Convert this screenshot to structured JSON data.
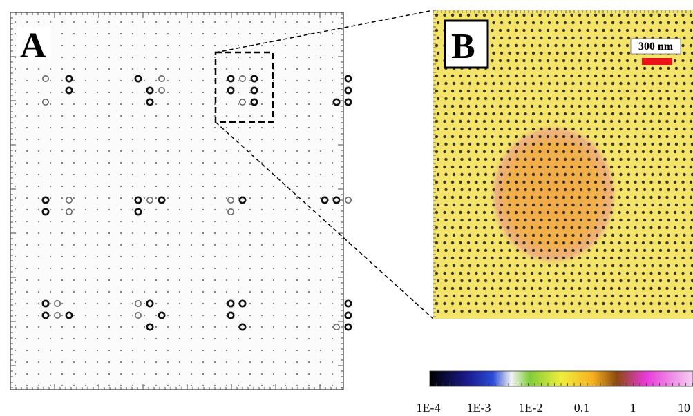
{
  "panels": [
    {
      "id": "A",
      "label": "A"
    },
    {
      "id": "B",
      "label": "B"
    }
  ],
  "scale_bar": {
    "label": "300 nm",
    "color": "#e8141a"
  },
  "colorbar": {
    "tick_labels": [
      "1E-4",
      "1E-3",
      "1E-2",
      "0.1",
      "1",
      "10"
    ],
    "colors": [
      "#000000",
      "#1a1a8a",
      "#2a4bd8",
      "#f2f2f2",
      "#7fcc3a",
      "#f0ee3c",
      "#f5b020",
      "#8a4a10",
      "#e838d8",
      "#f4d0f0"
    ]
  },
  "colors": {
    "panel_b_background": "#f4e46a",
    "panel_b_dots": "#1a1a1a",
    "panel_b_glow": "#f2a040",
    "panel_b_glow_edge": "#e878c8",
    "panel_a_dots": "#000000",
    "zoom_box": "#000000"
  }
}
